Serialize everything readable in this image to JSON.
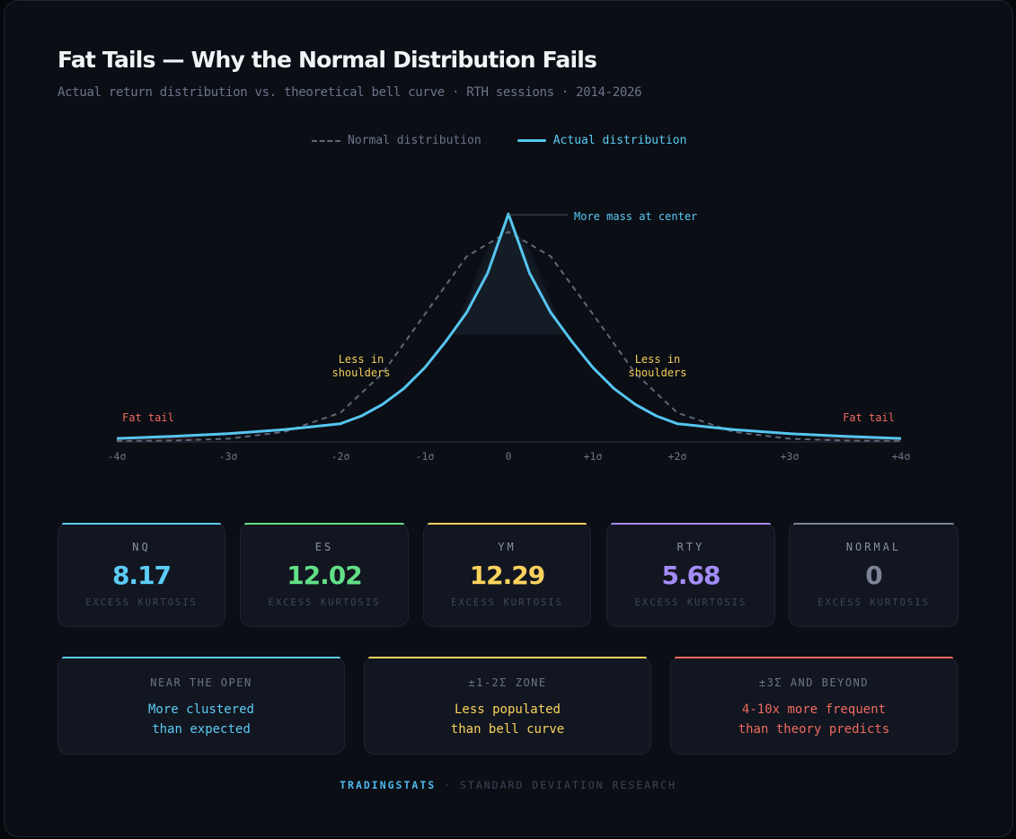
{
  "header": {
    "title": "Fat Tails — Why the Normal Distribution Fails",
    "subtitle": "Actual return distribution vs. theoretical bell curve · RTH sessions · 2014-2026"
  },
  "chart_data": {
    "type": "line",
    "legend_placement": "top-center",
    "grid": false,
    "x_ticks": [
      "-4σ",
      "-3σ",
      "-2σ",
      "-1σ",
      "0",
      "+1σ",
      "+2σ",
      "+3σ",
      "+4σ"
    ],
    "x_tick_values": [
      -4,
      -3,
      -2,
      -1,
      0,
      1,
      2,
      3,
      4
    ],
    "xlim": [
      -4,
      4
    ],
    "ylim": [
      0,
      0.45
    ],
    "series": [
      {
        "name": "Normal distribution",
        "style": "dashed",
        "color": "#5e6778",
        "x": [
          -4,
          -3.5,
          -3,
          -2.5,
          -2,
          -1.5,
          -1,
          -0.5,
          0,
          0.5,
          1,
          1.5,
          2,
          2.5,
          3,
          3.5,
          4
        ],
        "y": [
          0.0001,
          0.0009,
          0.0044,
          0.0175,
          0.054,
          0.1295,
          0.242,
          0.352,
          0.399,
          0.352,
          0.242,
          0.1295,
          0.054,
          0.0175,
          0.0044,
          0.0009,
          0.0001
        ]
      },
      {
        "name": "Actual distribution",
        "style": "solid",
        "color": "#56c5f0",
        "x": [
          -4,
          -3.5,
          -3,
          -2.5,
          -2,
          -1.75,
          -1.5,
          -1.25,
          -1,
          -0.75,
          -0.5,
          -0.25,
          0,
          0.25,
          0.5,
          0.75,
          1,
          1.25,
          1.5,
          1.75,
          2,
          2.5,
          3,
          3.5,
          4
        ],
        "y": [
          0.005,
          0.009,
          0.014,
          0.022,
          0.033,
          0.048,
          0.07,
          0.1,
          0.14,
          0.19,
          0.245,
          0.32,
          0.433,
          0.32,
          0.245,
          0.19,
          0.14,
          0.1,
          0.07,
          0.048,
          0.033,
          0.022,
          0.014,
          0.009,
          0.005
        ]
      }
    ],
    "annotations": {
      "center": "More mass at center",
      "shoulder_left": "Less in\nshoulders",
      "shoulder_right": "Less in\nshoulders",
      "tail_left": "Fat tail",
      "tail_right": "Fat tail"
    },
    "colors": {
      "center": "#5ccbf5",
      "shoulders": "#f5cf5a",
      "tails": "#ef6a5f",
      "axis": "#1d2230",
      "ticks": "#6c7689"
    }
  },
  "stats": [
    {
      "ticker": "NQ",
      "value": "8.17",
      "label": "EXCESS KURTOSIS",
      "color": "#5ccbf5"
    },
    {
      "ticker": "ES",
      "value": "12.02",
      "label": "EXCESS KURTOSIS",
      "color": "#62df86"
    },
    {
      "ticker": "YM",
      "value": "12.29",
      "label": "EXCESS KURTOSIS",
      "color": "#fbd25e"
    },
    {
      "ticker": "RTY",
      "value": "5.68",
      "label": "EXCESS KURTOSIS",
      "color": "#a48cf7"
    },
    {
      "ticker": "NORMAL",
      "value": "0",
      "label": "EXCESS KURTOSIS",
      "color": "#7c8596"
    }
  ],
  "zones": [
    {
      "title": "NEAR THE OPEN",
      "desc": "More clustered\nthan expected",
      "color": "#5ccbf5"
    },
    {
      "title": "±1-2Σ ZONE",
      "desc": "Less populated\nthan bell curve",
      "color": "#fbd25e"
    },
    {
      "title": "±3Σ AND BEYOND",
      "desc": "4-10x more frequent\nthan theory predicts",
      "color": "#ef6a5f"
    }
  ],
  "footer": {
    "brand": "TRADINGSTATS",
    "separator": " · ",
    "text": "STANDARD DEVIATION RESEARCH"
  }
}
